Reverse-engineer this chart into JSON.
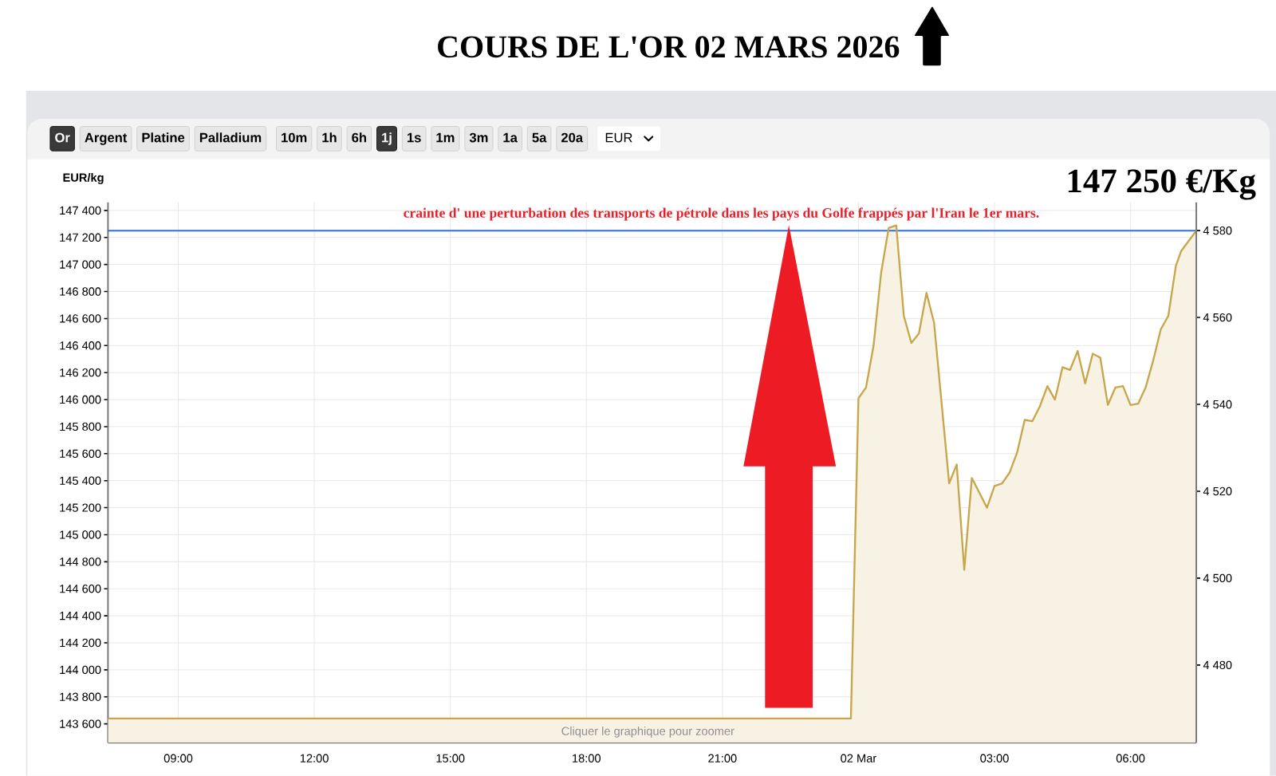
{
  "chart_data": {
    "type": "area",
    "title": "COURS DE L'OR 02 MARS 2026",
    "ylabel": "EUR/kg",
    "x": [
      "2026-03-01T07:27",
      "2026-03-01T23:50",
      "2026-03-02T00:00",
      "2026-03-02T00:10",
      "2026-03-02T00:20",
      "2026-03-02T00:30",
      "2026-03-02T00:40",
      "2026-03-02T00:50",
      "2026-03-02T01:00",
      "2026-03-02T01:10",
      "2026-03-02T01:20",
      "2026-03-02T01:30",
      "2026-03-02T01:40",
      "2026-03-02T02:00",
      "2026-03-02T02:10",
      "2026-03-02T02:20",
      "2026-03-02T02:30",
      "2026-03-02T02:50",
      "2026-03-02T03:00",
      "2026-03-02T03:10",
      "2026-03-02T03:20",
      "2026-03-02T03:30",
      "2026-03-02T03:40",
      "2026-03-02T03:50",
      "2026-03-02T04:00",
      "2026-03-02T04:10",
      "2026-03-02T04:20",
      "2026-03-02T04:30",
      "2026-03-02T04:40",
      "2026-03-02T04:50",
      "2026-03-02T05:00",
      "2026-03-02T05:10",
      "2026-03-02T05:20",
      "2026-03-02T05:30",
      "2026-03-02T05:40",
      "2026-03-02T05:50",
      "2026-03-02T06:00",
      "2026-03-02T06:10",
      "2026-03-02T06:20",
      "2026-03-02T06:30",
      "2026-03-02T06:40",
      "2026-03-02T06:50",
      "2026-03-02T07:00",
      "2026-03-02T07:07",
      "2026-03-02T07:27"
    ],
    "series": [
      {
        "color": "#c8a64c",
        "values": [
          143640,
          143640,
          146010,
          146090,
          146400,
          146940,
          147270,
          147290,
          146620,
          146420,
          146490,
          146790,
          146570,
          145380,
          145520,
          144740,
          145420,
          145200,
          145360,
          145380,
          145460,
          145610,
          145850,
          145840,
          145950,
          146100,
          146000,
          146240,
          146220,
          146360,
          146120,
          146340,
          146310,
          145960,
          146090,
          146100,
          145960,
          145970,
          146090,
          146290,
          146520,
          146620,
          146990,
          147100,
          147250
        ]
      }
    ],
    "xlim": [
      "2026-03-01T07:27",
      "2026-03-02T07:27"
    ],
    "xticks": [
      {
        "value": "2026-03-01T09:00",
        "label": "09:00"
      },
      {
        "value": "2026-03-01T12:00",
        "label": "12:00"
      },
      {
        "value": "2026-03-01T15:00",
        "label": "15:00"
      },
      {
        "value": "2026-03-01T18:00",
        "label": "18:00"
      },
      {
        "value": "2026-03-01T21:00",
        "label": "21:00"
      },
      {
        "value": "2026-03-02T00:00",
        "label": "02 Mar"
      },
      {
        "value": "2026-03-02T03:00",
        "label": "03:00"
      },
      {
        "value": "2026-03-02T06:00",
        "label": "06:00"
      }
    ],
    "ylim": [
      143460,
      147460
    ],
    "yticks": [
      {
        "value": 143600,
        "label": "143 600"
      },
      {
        "value": 143800,
        "label": "143 800"
      },
      {
        "value": 144000,
        "label": "144 000"
      },
      {
        "value": 144200,
        "label": "144 200"
      },
      {
        "value": 144400,
        "label": "144 400"
      },
      {
        "value": 144600,
        "label": "144 600"
      },
      {
        "value": 144800,
        "label": "144 800"
      },
      {
        "value": 145000,
        "label": "145 000"
      },
      {
        "value": 145200,
        "label": "145 200"
      },
      {
        "value": 145400,
        "label": "145 400"
      },
      {
        "value": 145600,
        "label": "145 600"
      },
      {
        "value": 145800,
        "label": "145 800"
      },
      {
        "value": 146000,
        "label": "146 000"
      },
      {
        "value": 146200,
        "label": "146 200"
      },
      {
        "value": 146400,
        "label": "146 400"
      },
      {
        "value": 146600,
        "label": "146 600"
      },
      {
        "value": 146800,
        "label": "146 800"
      },
      {
        "value": 147000,
        "label": "147 000"
      },
      {
        "value": 147200,
        "label": "147 200"
      },
      {
        "value": 147400,
        "label": "147 400"
      }
    ],
    "y2lim": [
      4462.1,
      4586.5
    ],
    "y2ticks": [
      {
        "value": 4480,
        "label": "4 480"
      },
      {
        "value": 4500,
        "label": "4 500"
      },
      {
        "value": 4520,
        "label": "4 520"
      },
      {
        "value": 4540,
        "label": "4 540"
      },
      {
        "value": 4560,
        "label": "4 560"
      },
      {
        "value": 4580,
        "label": "4 580"
      }
    ],
    "ref_lines": [
      {
        "axis": "y",
        "value": 147250,
        "label": "147 250 €/Kg",
        "color": "#2f6fd8"
      }
    ],
    "grid": true,
    "annotations": [
      "Or",
      "Argent",
      "Platine",
      "Palladium",
      "10m",
      "1h",
      "6h",
      "1j",
      "1s",
      "1m",
      "3m",
      "1a",
      "5a",
      "20a",
      "EUR",
      "crainte d' une perturbation des transports de pétrole dans les pays du Golfe frappés par l'Iran le 1er mars.",
      "Cliquer le graphique pour zoomer"
    ]
  }
}
